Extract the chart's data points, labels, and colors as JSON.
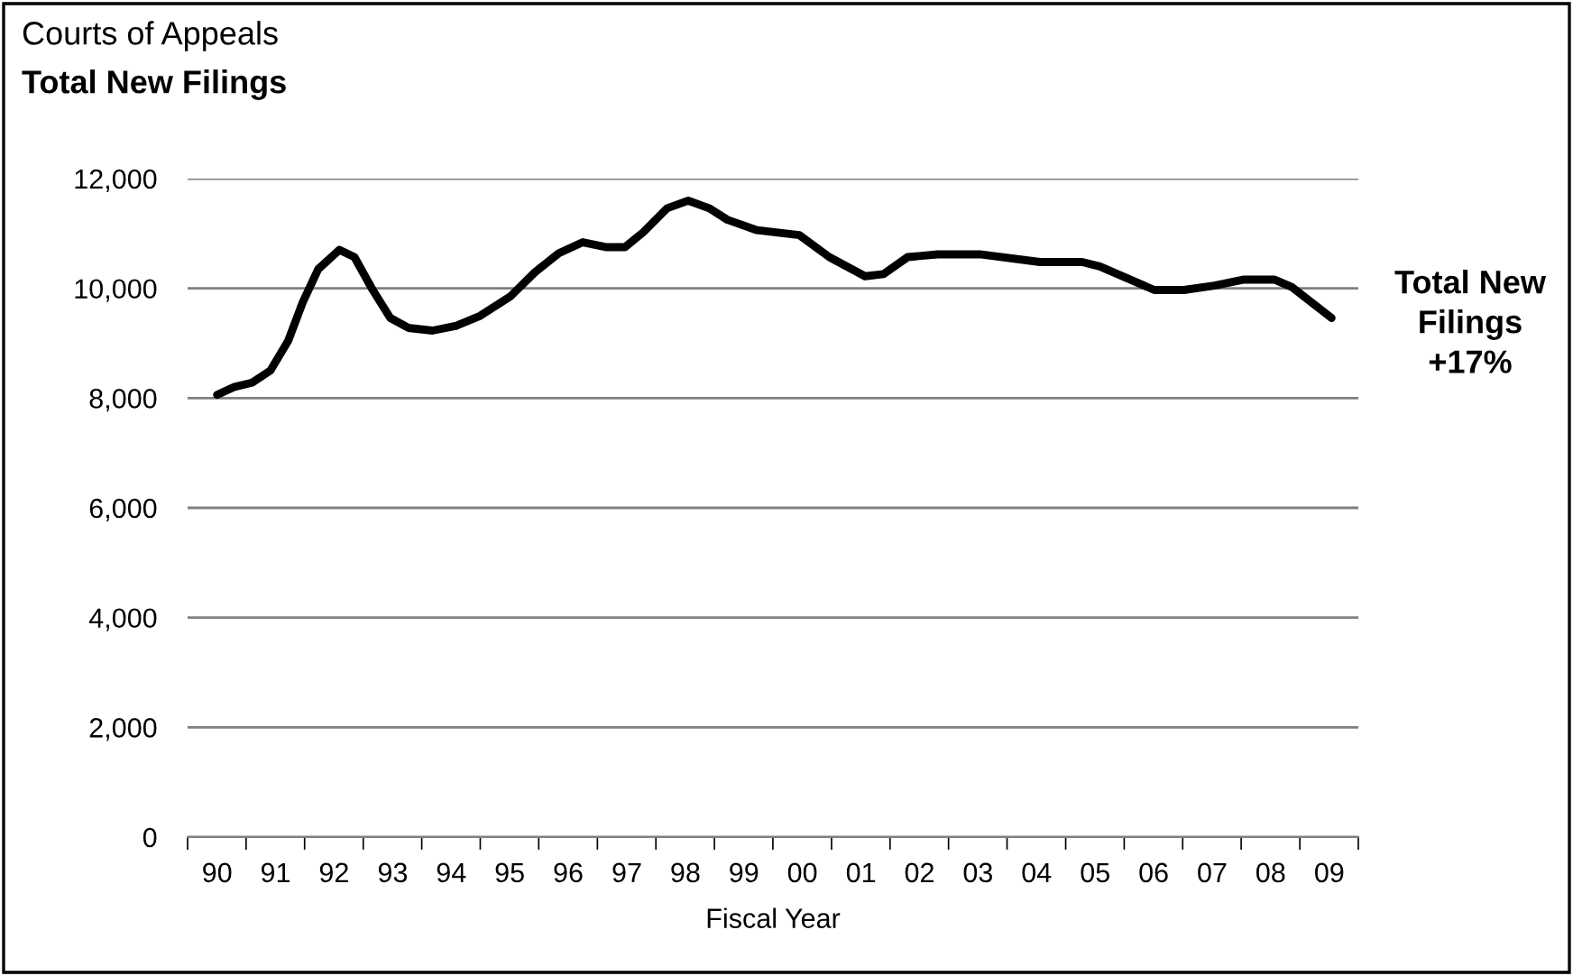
{
  "chart_data": {
    "type": "line",
    "title": "Courts of Appeals",
    "subtitle": "Total New Filings",
    "xlabel": "Fiscal Year",
    "annotations": [
      "Total New\nFilings\n+17%"
    ],
    "series": [
      {
        "color": "#000000",
        "x": [
          "1990-01-01",
          "1990-04-15",
          "1990-08-07",
          "1990-11-29",
          "1991-03-20",
          "1991-06-20",
          "1991-09-24",
          "1992-02-03",
          "1992-05-07",
          "1992-08-29",
          "1992-12-17",
          "1993-04-08",
          "1993-09-06",
          "1994-02-03",
          "1994-07-01",
          "1995-01-08",
          "1995-06-06",
          "1995-11-03",
          "1996-04-01",
          "1996-08-29",
          "1996-12-20",
          "1997-04-12",
          "1997-09-09",
          "1998-01-19",
          "1998-05-29",
          "1998-09-20",
          "1999-03-24",
          "1999-12-13",
          "2000-06-17",
          "2001-01-26",
          "2001-05-21",
          "2001-10-19",
          "2002-04-23",
          "2003-01-12",
          "2004-01-23",
          "2004-10-12",
          "2005-01-30",
          "2006-01-05",
          "2006-07-08",
          "2007-01-15",
          "2007-07-19",
          "2008-01-23",
          "2008-05-14",
          "2009-01-15"
        ],
        "values": [
          8060,
          8200,
          8280,
          8500,
          9040,
          9750,
          10350,
          10700,
          10570,
          9970,
          9460,
          9280,
          9230,
          9320,
          9500,
          9860,
          10290,
          10640,
          10840,
          10750,
          10750,
          11020,
          11460,
          11600,
          11460,
          11250,
          11060,
          10970,
          10570,
          10220,
          10260,
          10570,
          10620,
          10620,
          10480,
          10480,
          10400,
          9970,
          9970,
          10050,
          10160,
          10160,
          10020,
          9460
        ]
      }
    ],
    "xlim": [
      "1989-07",
      "2009-07"
    ],
    "xticks": [
      {
        "value": "1990",
        "label": "90"
      },
      {
        "value": "1991",
        "label": "91"
      },
      {
        "value": "1992",
        "label": "92"
      },
      {
        "value": "1993",
        "label": "93"
      },
      {
        "value": "1994",
        "label": "94"
      },
      {
        "value": "1995",
        "label": "95"
      },
      {
        "value": "1996",
        "label": "96"
      },
      {
        "value": "1997",
        "label": "97"
      },
      {
        "value": "1998",
        "label": "98"
      },
      {
        "value": "1999",
        "label": "99"
      },
      {
        "value": "2000",
        "label": "00"
      },
      {
        "value": "2001",
        "label": "01"
      },
      {
        "value": "2002",
        "label": "02"
      },
      {
        "value": "2003",
        "label": "03"
      },
      {
        "value": "2004",
        "label": "04"
      },
      {
        "value": "2005",
        "label": "05"
      },
      {
        "value": "2006",
        "label": "06"
      },
      {
        "value": "2007",
        "label": "07"
      },
      {
        "value": "2008",
        "label": "08"
      },
      {
        "value": "2009",
        "label": "09"
      },
      {
        "value": "1989-07",
        "label": null
      },
      {
        "value": "1990-07",
        "label": null
      },
      {
        "value": "1991-07",
        "label": null
      },
      {
        "value": "1992-07",
        "label": null
      },
      {
        "value": "1993-07",
        "label": null
      },
      {
        "value": "1994-07",
        "label": null
      },
      {
        "value": "1995-07",
        "label": null
      },
      {
        "value": "1996-07",
        "label": null
      },
      {
        "value": "1997-07",
        "label": null
      },
      {
        "value": "1998-07",
        "label": null
      },
      {
        "value": "1999-07",
        "label": null
      },
      {
        "value": "2000-07",
        "label": null
      },
      {
        "value": "2001-07",
        "label": null
      },
      {
        "value": "2002-07",
        "label": null
      },
      {
        "value": "2003-07",
        "label": null
      },
      {
        "value": "2004-07",
        "label": null
      },
      {
        "value": "2005-07",
        "label": null
      },
      {
        "value": "2006-07",
        "label": null
      },
      {
        "value": "2007-07",
        "label": null
      },
      {
        "value": "2008-07",
        "label": null
      },
      {
        "value": "2009-07",
        "label": null
      }
    ],
    "ylim": [
      0,
      12000
    ],
    "yticks": [
      {
        "value": 0,
        "label": "0"
      },
      {
        "value": 2000,
        "label": "2,000"
      },
      {
        "value": 4000,
        "label": "4,000"
      },
      {
        "value": 6000,
        "label": "6,000"
      },
      {
        "value": 8000,
        "label": "8,000"
      },
      {
        "value": 10000,
        "label": "10,000"
      },
      {
        "value": 12000,
        "label": "12,000"
      }
    ],
    "grid": "y",
    "legend": false,
    "marker": "none",
    "line_style": "solid"
  }
}
